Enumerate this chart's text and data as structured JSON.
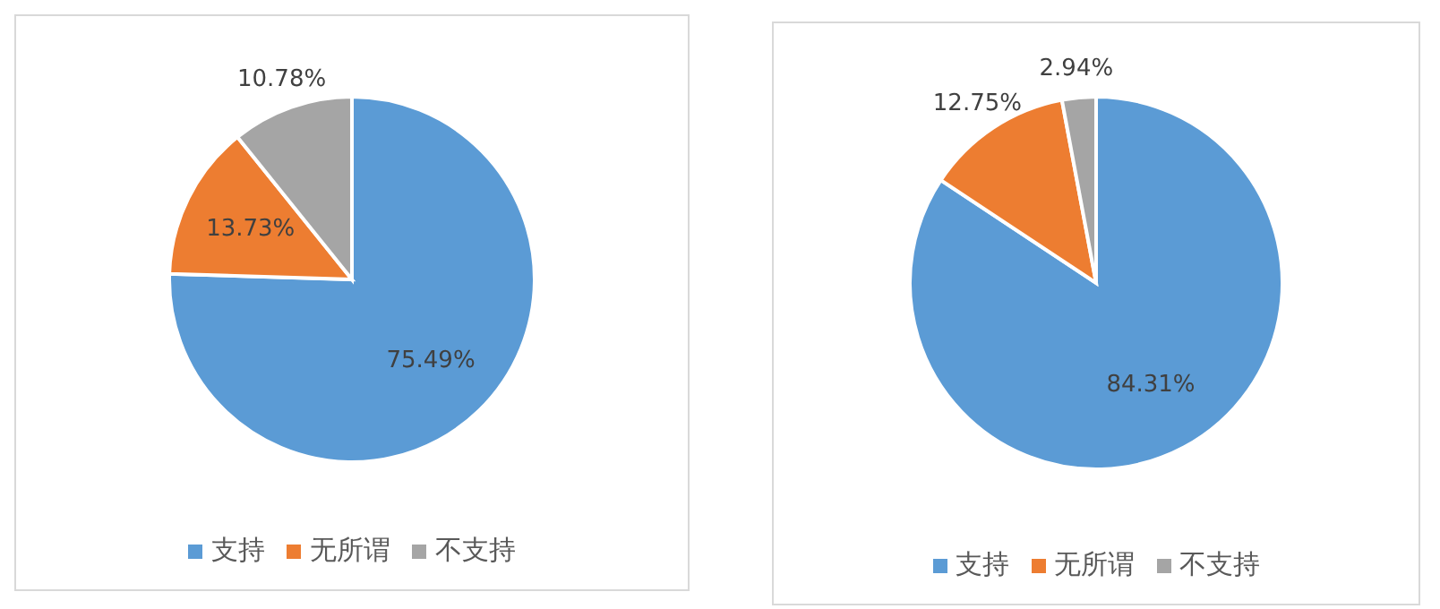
{
  "chart_data": [
    {
      "type": "pie",
      "categories": [
        "支持",
        "无所谓",
        "不支持"
      ],
      "values": [
        75.49,
        13.73,
        10.78
      ],
      "value_labels": [
        "75.49%",
        "13.73%",
        "10.78%"
      ],
      "colors": [
        "#5b9bd5",
        "#ed7d31",
        "#a5a5a5"
      ],
      "legend": "bottom"
    },
    {
      "type": "pie",
      "categories": [
        "支持",
        "无所谓",
        "不支持"
      ],
      "values": [
        84.31,
        12.75,
        2.94
      ],
      "value_labels": [
        "84.31%",
        "12.75%",
        "2.94%"
      ],
      "colors": [
        "#5b9bd5",
        "#ed7d31",
        "#a5a5a5"
      ],
      "legend": "bottom"
    }
  ]
}
